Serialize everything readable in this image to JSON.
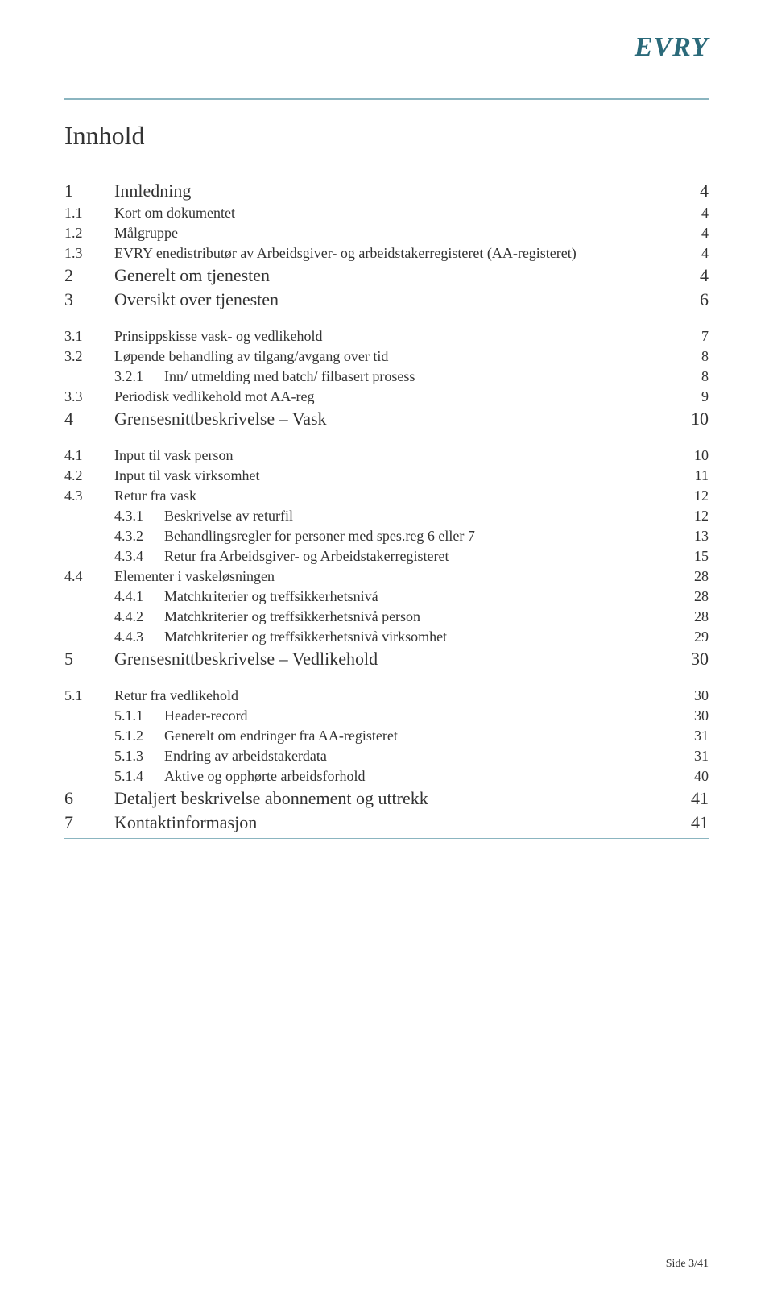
{
  "logo": "EVRY",
  "title": "Innhold",
  "footer": "Side 3/41",
  "colors": {
    "rule": "#8bb5c0",
    "text": "#333333",
    "logo": "#2b6a7a"
  },
  "typography": {
    "title_fontsize": 32,
    "level1_fontsize": 22,
    "level2_fontsize": 18,
    "font_family": "Georgia, serif"
  },
  "toc": [
    {
      "level": 1,
      "num": "1",
      "label": "Innledning",
      "page": "4"
    },
    {
      "level": 2,
      "num": "1.1",
      "label": "Kort om dokumentet",
      "page": "4"
    },
    {
      "level": 2,
      "num": "1.2",
      "label": "Målgruppe",
      "page": "4"
    },
    {
      "level": 2,
      "num": "1.3",
      "label": "EVRY enedistributør av Arbeidsgiver- og arbeidstakerregisteret (AA-registeret)",
      "page": "4"
    },
    {
      "level": 1,
      "num": "2",
      "label": "Generelt om tjenesten",
      "page": "4"
    },
    {
      "level": 1,
      "num": "3",
      "label": "Oversikt over tjenesten",
      "page": "6",
      "gap_after": true
    },
    {
      "level": 2,
      "num": "3.1",
      "label": "Prinsippskisse vask- og vedlikehold",
      "page": "7"
    },
    {
      "level": 2,
      "num": "3.2",
      "label": "Løpende behandling av tilgang/avgang over tid",
      "page": "8"
    },
    {
      "level": 3,
      "num": "3.2.1",
      "label": "Inn/ utmelding med batch/ filbasert prosess",
      "page": "8"
    },
    {
      "level": 2,
      "num": "3.3",
      "label": "Periodisk vedlikehold mot AA-reg",
      "page": "9"
    },
    {
      "level": 1,
      "num": "4",
      "label": "Grensesnittbeskrivelse – Vask",
      "page": "10",
      "gap_after": true
    },
    {
      "level": 2,
      "num": "4.1",
      "label": "Input til vask person",
      "page": "10"
    },
    {
      "level": 2,
      "num": "4.2",
      "label": "Input til vask virksomhet",
      "page": "11"
    },
    {
      "level": 2,
      "num": "4.3",
      "label": "Retur fra vask",
      "page": "12"
    },
    {
      "level": 3,
      "num": "4.3.1",
      "label": "Beskrivelse av returfil",
      "page": "12"
    },
    {
      "level": 3,
      "num": "4.3.2",
      "label": "Behandlingsregler for personer med spes.reg 6 eller 7",
      "page": "13"
    },
    {
      "level": 3,
      "num": "4.3.4",
      "label": "Retur fra Arbeidsgiver- og Arbeidstakerregisteret",
      "page": "15"
    },
    {
      "level": 2,
      "num": "4.4",
      "label": "Elementer i vaskeløsningen",
      "page": "28"
    },
    {
      "level": 3,
      "num": "4.4.1",
      "label": "Matchkriterier og treffsikkerhetsnivå",
      "page": "28"
    },
    {
      "level": 3,
      "num": "4.4.2",
      "label": "Matchkriterier og treffsikkerhetsnivå person",
      "page": "28"
    },
    {
      "level": 3,
      "num": "4.4.3",
      "label": "Matchkriterier og treffsikkerhetsnivå virksomhet",
      "page": "29"
    },
    {
      "level": 1,
      "num": "5",
      "label": "Grensesnittbeskrivelse – Vedlikehold",
      "page": "30",
      "gap_after": true
    },
    {
      "level": 2,
      "num": "5.1",
      "label": "Retur fra vedlikehold",
      "page": "30"
    },
    {
      "level": 3,
      "num": "5.1.1",
      "label": "Header-record",
      "page": "30"
    },
    {
      "level": 3,
      "num": "5.1.2",
      "label": "Generelt om endringer fra AA-registeret",
      "page": "31"
    },
    {
      "level": 3,
      "num": "5.1.3",
      "label": "Endring av arbeidstakerdata",
      "page": "31"
    },
    {
      "level": 3,
      "num": "5.1.4",
      "label": "Aktive og opphørte arbeidsforhold",
      "page": "40"
    },
    {
      "level": 1,
      "num": "6",
      "label": "Detaljert beskrivelse abonnement og uttrekk",
      "page": "41"
    },
    {
      "level": 1,
      "num": "7",
      "label": "Kontaktinformasjon",
      "page": "41",
      "rule_after": true
    }
  ]
}
